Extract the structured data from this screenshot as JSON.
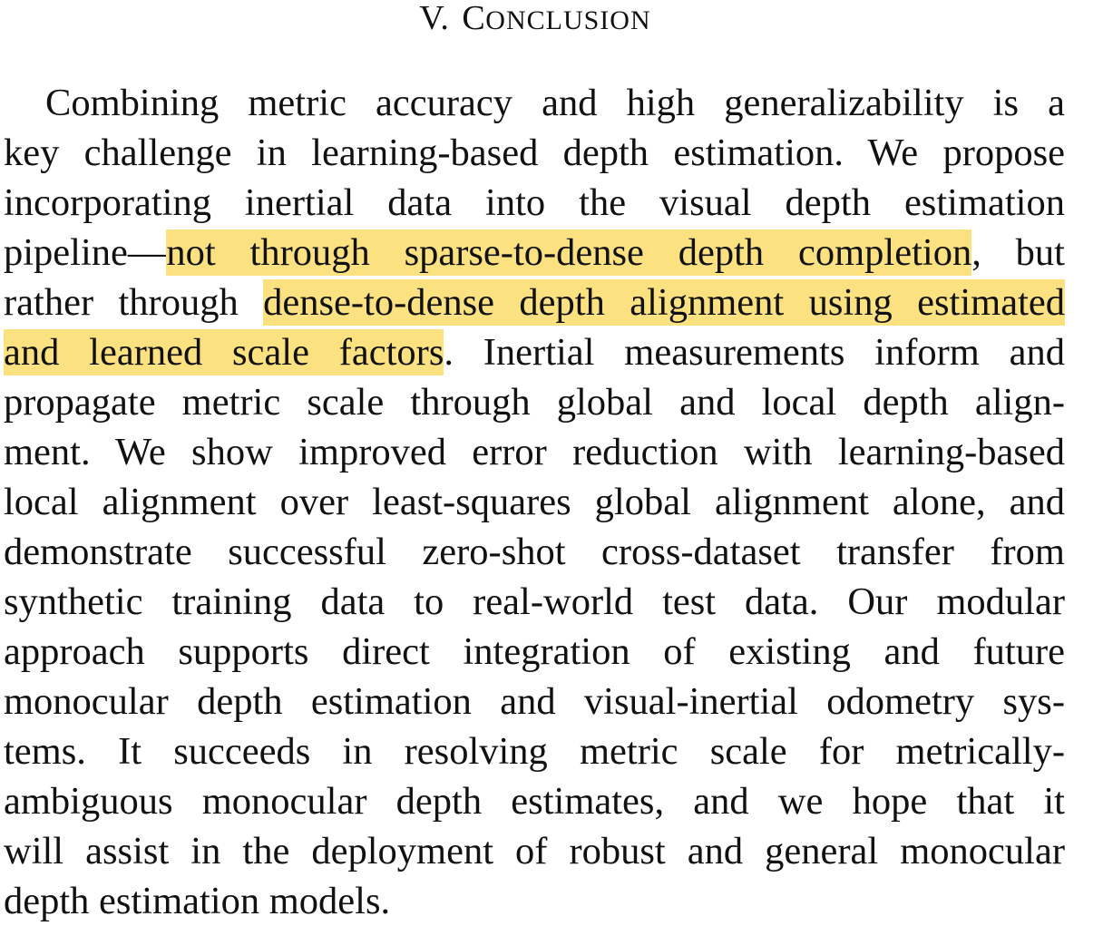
{
  "section": {
    "number": "V.",
    "title_initial": "C",
    "title_rest": "ONCLUSION"
  },
  "paragraph": {
    "lines": [
      {
        "text": "Combining metric accuracy and high generalizability is a"
      },
      {
        "text": "key challenge in learning-based depth estimation. We propose"
      },
      {
        "text": "incorporating inertial data into the visual depth estimation"
      },
      {
        "pre": "pipeline—",
        "highlight": "not through sparse-to-dense depth completion",
        "post": ", but"
      },
      {
        "pre": "rather through ",
        "highlight": "dense-to-dense depth alignment using estimated",
        "post": ""
      },
      {
        "pre": "",
        "highlight": "and learned scale factors",
        "post": ". Inertial measurements inform and"
      },
      {
        "text": "propagate metric scale through global and local depth align-"
      },
      {
        "text": "ment. We show improved error reduction with learning-based"
      },
      {
        "text": "local alignment over least-squares global alignment alone, and"
      },
      {
        "text": "demonstrate successful zero-shot cross-dataset transfer from"
      },
      {
        "text": "synthetic training data to real-world test data. Our modular"
      },
      {
        "text": "approach supports direct integration of existing and future"
      },
      {
        "text": "monocular depth estimation and visual-inertial odometry sys-"
      },
      {
        "text": "tems. It succeeds in resolving metric scale for metrically-"
      },
      {
        "text": "ambiguous monocular depth estimates, and we hope that it"
      },
      {
        "text": "will assist in the deployment of robust and general monocular"
      },
      {
        "text": "depth estimation models."
      }
    ]
  },
  "colors": {
    "highlight": "#fbe17f",
    "text": "#111111",
    "background": "#ffffff"
  }
}
